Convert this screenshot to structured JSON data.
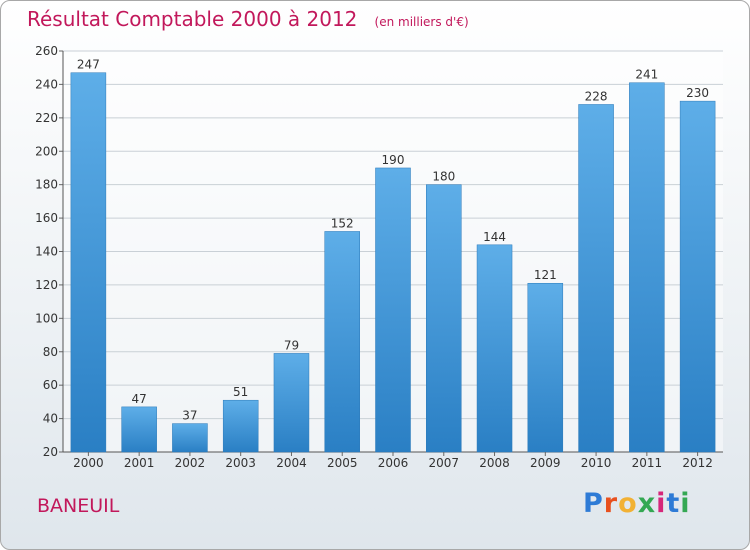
{
  "chart_data": {
    "type": "bar",
    "title": "Résultat Comptable 2000 à 2012",
    "subtitle": "(en milliers d'€)",
    "categories": [
      "2000",
      "2001",
      "2002",
      "2003",
      "2004",
      "2005",
      "2006",
      "2007",
      "2008",
      "2009",
      "2010",
      "2011",
      "2012"
    ],
    "values": [
      247,
      47,
      37,
      51,
      79,
      152,
      190,
      180,
      144,
      121,
      228,
      241,
      230
    ],
    "data_labels": [
      "247",
      "47",
      "37",
      "51",
      "79",
      "152",
      "190",
      "180",
      "144",
      "121",
      "228",
      "241",
      "230"
    ],
    "ylim": [
      20,
      260
    ],
    "yticks": [
      "20",
      "40",
      "60",
      "80",
      "100",
      "120",
      "140",
      "160",
      "180",
      "200",
      "220",
      "240",
      "260"
    ],
    "grid": true,
    "xlabel": "",
    "ylabel": "",
    "bar_color": "#3b8fd4"
  },
  "footer": {
    "commune": "BANEUIL",
    "brand": "Proxiti"
  },
  "colors": {
    "title": "#c2185b",
    "brand_letters": [
      "#2e7bd6",
      "#e8501e",
      "#f2b134",
      "#34a853",
      "#d6277a",
      "#2e7bd6",
      "#34a853"
    ]
  }
}
